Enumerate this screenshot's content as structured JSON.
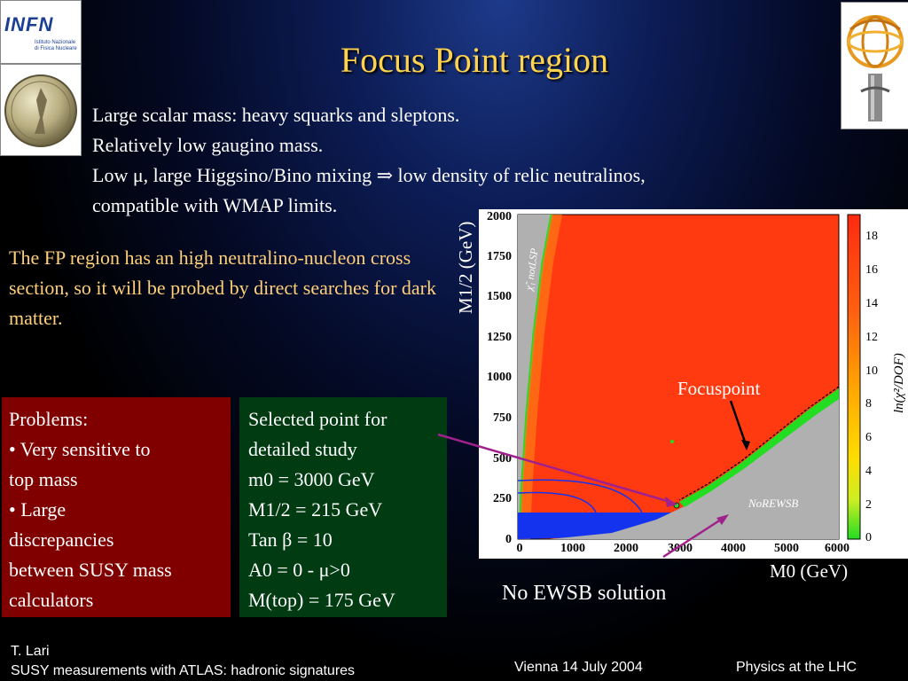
{
  "slide": {
    "title": "Focus Point region",
    "intro_lines": [
      "Large scalar mass: heavy squarks and sleptons.",
      "Relatively low gaugino mass.",
      "Low μ, large Higgsino/Bino mixing ⇒ low density of relic neutralinos,",
      "compatible with WMAP limits."
    ],
    "fp_text": "The FP region has an high neutralino-nucleon cross section, so it will be probed by direct searches for dark matter."
  },
  "logos": {
    "infn_big": "INFN",
    "infn_small": "Istituto Nazionale di Fisica Nucleare"
  },
  "problems_box": {
    "lines": [
      "Problems:",
      "• Very sensitive to",
      "top mass",
      "• Large",
      "discrepancies",
      "between SUSY mass",
      "calculators"
    ]
  },
  "selected_box": {
    "lines": [
      "Selected point for",
      "detailed study"
    ],
    "params": {
      "m0": "m0 = 3000 GeV",
      "m12": "M1/2  = 215 GeV",
      "tanb": "Tan β = 10",
      "a0": "A0 = 0 - μ>0",
      "mtop": "M(top) = 175 GeV"
    }
  },
  "plot": {
    "ylabel": "M1/2 (GeV)",
    "xlabel": "M0 (GeV)",
    "x_ticks": [
      "0",
      "1000",
      "2000",
      "3000",
      "4000",
      "5000",
      "6000"
    ],
    "y_ticks": [
      "0",
      "250",
      "500",
      "750",
      "1000",
      "1250",
      "1500",
      "1750",
      "2000"
    ],
    "colorbar_ticks": [
      "0",
      "2",
      "4",
      "6",
      "8",
      "10",
      "12",
      "14",
      "16",
      "18"
    ],
    "colorbar_label": "ln(χ²/DOF)",
    "noteslsp": "χ̃₁ notLSP",
    "norewsb": "NoREWSB",
    "focuspoint_label": "Focuspoint",
    "colors": {
      "red": "#ff3a10",
      "gray": "#b0b0b0",
      "blue": "#1433ee",
      "green": "#22dd22",
      "arrow_purple": "#a0208c"
    }
  },
  "annotation": {
    "no_ewsb": "No EWSB solution"
  },
  "footer": {
    "author": "T. Lari",
    "talk": "SUSY measurements with ATLAS: hadronic signatures",
    "date": "Vienna 14 July 2004",
    "conf": "Physics at  the LHC"
  }
}
